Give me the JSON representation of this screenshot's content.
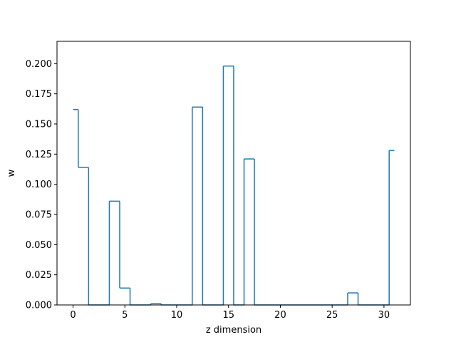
{
  "chart_data": {
    "type": "step",
    "xlabel": "z dimension",
    "ylabel": "w",
    "xlim": [
      -1.55,
      32.55
    ],
    "ylim": [
      0.0,
      0.2185
    ],
    "xticks": [
      0,
      5,
      10,
      15,
      20,
      25,
      30
    ],
    "yticks": [
      0.0,
      0.025,
      0.05,
      0.075,
      0.1,
      0.125,
      0.15,
      0.175,
      0.2
    ],
    "ytick_labels": [
      "0.000",
      "0.025",
      "0.050",
      "0.075",
      "0.100",
      "0.125",
      "0.150",
      "0.175",
      "0.200"
    ],
    "grid": false,
    "line_color": "#1f77b4",
    "x": [
      0,
      1,
      2,
      3,
      4,
      5,
      6,
      7,
      8,
      9,
      10,
      11,
      12,
      13,
      14,
      15,
      16,
      17,
      18,
      19,
      20,
      21,
      22,
      23,
      24,
      25,
      26,
      27,
      28,
      29,
      30,
      31
    ],
    "values": [
      0.162,
      0.114,
      0.0,
      0.0,
      0.086,
      0.014,
      0.0,
      0.0,
      0.001,
      0.0,
      0.0,
      0.0,
      0.164,
      0.0,
      0.0,
      0.198,
      0.0,
      0.121,
      0.0,
      0.0,
      0.0,
      0.0,
      0.0,
      0.0,
      0.0,
      0.0,
      0.0,
      0.01,
      0.0,
      0.0,
      0.0,
      0.128
    ]
  }
}
